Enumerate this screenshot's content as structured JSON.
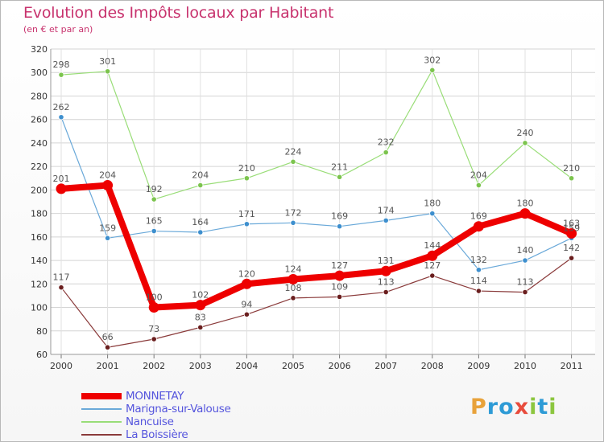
{
  "title": "Evolution des Impôts locaux par Habitant",
  "subtitle": "(en € et par an)",
  "brand": {
    "text": "Proxiti",
    "letters": [
      {
        "ch": "P",
        "color": "#e8a23a"
      },
      {
        "ch": "r",
        "color": "#2e9bd6"
      },
      {
        "ch": "o",
        "color": "#2e9bd6"
      },
      {
        "ch": "x",
        "color": "#e84c3d"
      },
      {
        "ch": "i",
        "color": "#8cc63f"
      },
      {
        "ch": "t",
        "color": "#2e9bd6"
      },
      {
        "ch": "i",
        "color": "#8cc63f"
      }
    ]
  },
  "chart_data": {
    "type": "line",
    "title": "Evolution des Impôts locaux par Habitant",
    "subtitle": "(en € et par an)",
    "xlabel": "",
    "ylabel": "",
    "categories": [
      "2000",
      "2001",
      "2002",
      "2003",
      "2004",
      "2005",
      "2006",
      "2007",
      "2008",
      "2009",
      "2010",
      "2011"
    ],
    "ylim": [
      60,
      320
    ],
    "yticks": [
      60,
      80,
      100,
      120,
      140,
      160,
      180,
      200,
      220,
      240,
      260,
      280,
      300,
      320
    ],
    "grid": true,
    "legend_position": "bottom-left",
    "series": [
      {
        "name": "Nancuise",
        "color": "#99dd77",
        "markerColor": "#7cc44e",
        "values": [
          298,
          301,
          192,
          204,
          210,
          224,
          211,
          232,
          302,
          204,
          240,
          210
        ]
      },
      {
        "name": "Marigna-sur-Valouse",
        "color": "#6aa9d9",
        "markerColor": "#3d8fce",
        "values": [
          262,
          159,
          165,
          164,
          171,
          172,
          169,
          174,
          180,
          132,
          140,
          159
        ]
      },
      {
        "name": "La Boissière",
        "color": "#8a3a3a",
        "markerColor": "#6a1e1e",
        "values": [
          117,
          66,
          73,
          83,
          94,
          108,
          109,
          113,
          127,
          114,
          113,
          142
        ]
      },
      {
        "name": "MONNETAY",
        "color": "#ee0000",
        "markerColor": "#ee0000",
        "values": [
          201,
          204,
          100,
          102,
          120,
          124,
          127,
          131,
          144,
          169,
          180,
          163
        ]
      }
    ],
    "legend_order": [
      "MONNETAY",
      "Marigna-sur-Valouse",
      "Nancuise",
      "La Boissière"
    ]
  }
}
